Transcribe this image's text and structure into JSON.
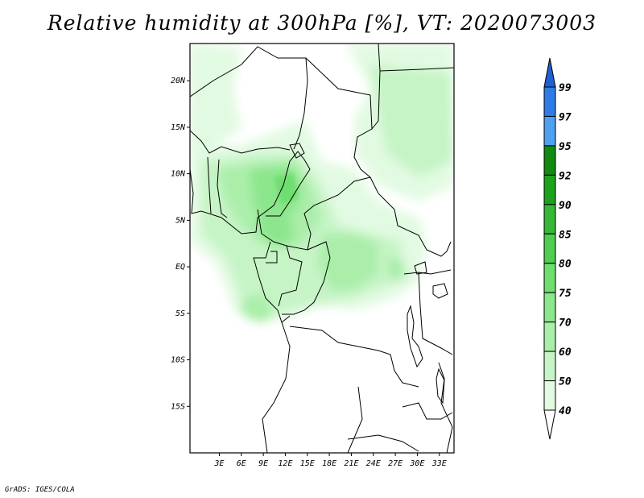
{
  "title": "Relative humidity at 300hPa [%], VT: 2020073003",
  "credit": "GrADS: IGES/COLA",
  "map": {
    "lon_range": [
      -1,
      35
    ],
    "lat_range": [
      -20,
      24
    ],
    "lat_ticks": [
      {
        "value": 20,
        "label": "20N"
      },
      {
        "value": 15,
        "label": "15N"
      },
      {
        "value": 10,
        "label": "10N"
      },
      {
        "value": 5,
        "label": "5N"
      },
      {
        "value": 0,
        "label": "EQ"
      },
      {
        "value": -5,
        "label": "5S"
      },
      {
        "value": -10,
        "label": "10S"
      },
      {
        "value": -15,
        "label": "15S"
      }
    ],
    "lon_ticks": [
      {
        "value": 3,
        "label": "3E"
      },
      {
        "value": 6,
        "label": "6E"
      },
      {
        "value": 9,
        "label": "9E"
      },
      {
        "value": 12,
        "label": "12E"
      },
      {
        "value": 15,
        "label": "15E"
      },
      {
        "value": 18,
        "label": "18E"
      },
      {
        "value": 21,
        "label": "21E"
      },
      {
        "value": 24,
        "label": "24E"
      },
      {
        "value": 27,
        "label": "27E"
      },
      {
        "value": 30,
        "label": "30E"
      },
      {
        "value": 33,
        "label": "33E"
      }
    ]
  },
  "colorbar": {
    "levels": [
      {
        "label": "99",
        "color": "#1e5fd2"
      },
      {
        "label": "97",
        "color": "#2e7de6"
      },
      {
        "label": "95",
        "color": "#50a0f0"
      },
      {
        "label": "92",
        "color": "#118a11"
      },
      {
        "label": "90",
        "color": "#1ea21e"
      },
      {
        "label": "85",
        "color": "#36b836"
      },
      {
        "label": "80",
        "color": "#50cc50"
      },
      {
        "label": "75",
        "color": "#6ede6e"
      },
      {
        "label": "70",
        "color": "#8ce68c"
      },
      {
        "label": "60",
        "color": "#aaeeaa"
      },
      {
        "label": "50",
        "color": "#c6f4c6"
      },
      {
        "label": "40",
        "color": "#e2fae2"
      }
    ],
    "top_color": "#1e5fd2",
    "bottom_color": "#ffffff"
  }
}
